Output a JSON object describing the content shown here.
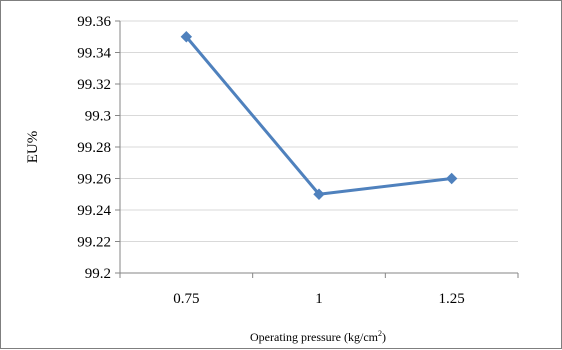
{
  "chart_data": {
    "type": "line",
    "title": "",
    "xlabel": "Operating pressure (kg/cm²)",
    "ylabel": "EU%",
    "categories": [
      "0.75",
      "1",
      "1.25"
    ],
    "series": [
      {
        "values": [
          99.35,
          99.25,
          99.26
        ],
        "color": "#4f81bd",
        "marker": "diamond"
      }
    ],
    "ylim": [
      99.2,
      99.36
    ],
    "yticks": [
      "99.2",
      "99.22",
      "99.24",
      "99.26",
      "99.28",
      "99.3",
      "99.32",
      "99.34",
      "99.36"
    ],
    "grid": true,
    "legend": "none",
    "colors": {
      "line": "#4f81bd",
      "grid": "#d9d9d9",
      "axis": "#868686",
      "frame": "#7f7f7f"
    }
  }
}
